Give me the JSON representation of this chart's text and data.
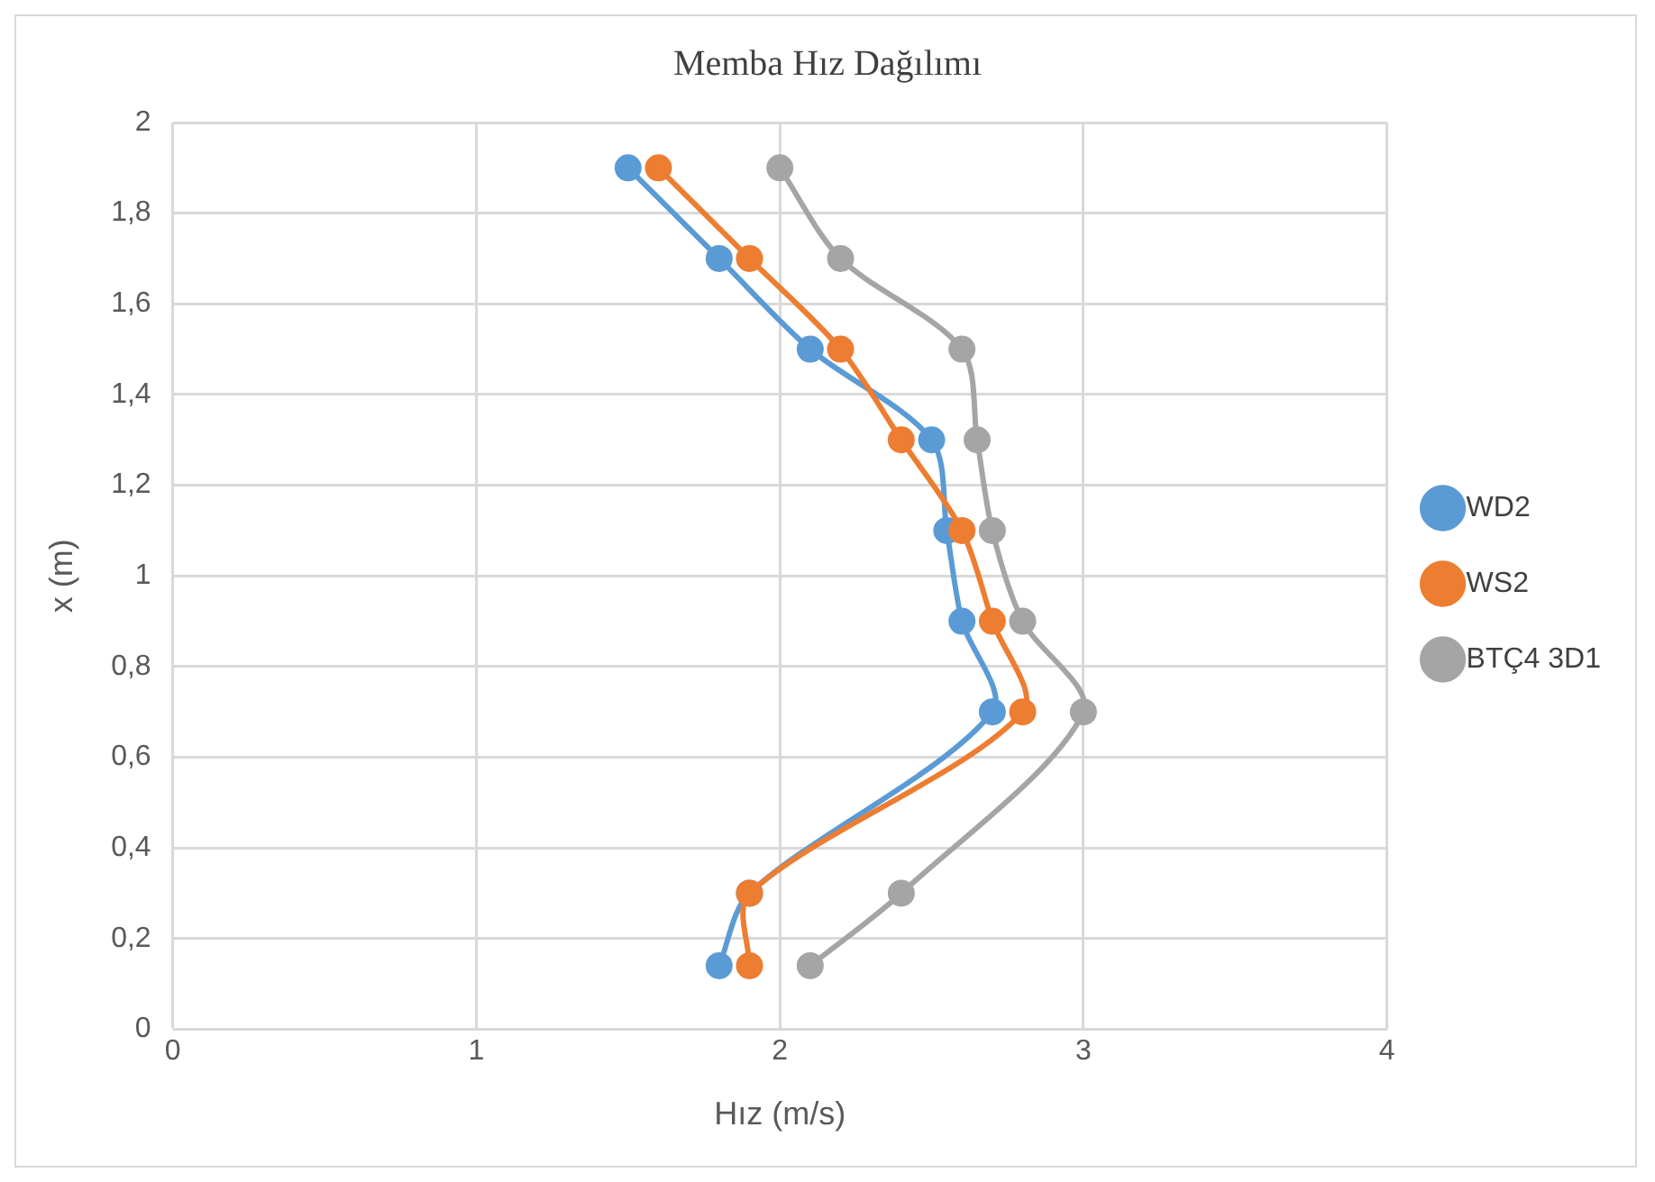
{
  "chart_data": {
    "type": "line",
    "title": "Memba Hız Dağılımı",
    "xlabel": "Hız (m/s)",
    "ylabel": "x (m)",
    "series": [
      {
        "name": "WD2",
        "color": "#5b9bd5",
        "x": [
          1.5,
          1.8,
          2.1,
          2.5,
          2.55,
          2.6,
          2.7,
          1.9,
          1.8
        ],
        "values": [
          1.9,
          1.7,
          1.5,
          1.3,
          1.1,
          0.9,
          0.7,
          0.3,
          0.14
        ]
      },
      {
        "name": "WS2",
        "color": "#ed7d31",
        "x": [
          1.6,
          1.9,
          2.2,
          2.4,
          2.6,
          2.7,
          2.8,
          1.9,
          1.9
        ],
        "values": [
          1.9,
          1.7,
          1.5,
          1.3,
          1.1,
          0.9,
          0.7,
          0.3,
          0.14
        ]
      },
      {
        "name": "BTÇ4 3D1",
        "color": "#a5a5a5",
        "x": [
          2.0,
          2.2,
          2.6,
          2.65,
          2.7,
          2.8,
          3.0,
          2.4,
          2.1
        ],
        "values": [
          1.9,
          1.7,
          1.5,
          1.3,
          1.1,
          0.9,
          0.7,
          0.3,
          0.14
        ]
      }
    ],
    "xlim": [
      0,
      4
    ],
    "xticks": [
      0,
      1,
      2,
      3,
      4
    ],
    "ylim": [
      0,
      2
    ],
    "yticks": [
      0,
      {
        "value": 0.2,
        "label": "0,2"
      },
      {
        "value": 0.4,
        "label": "0,4"
      },
      {
        "value": 0.6,
        "label": "0,6"
      },
      {
        "value": 0.8,
        "label": "0,8"
      },
      1,
      {
        "value": 1.2,
        "label": "1,2"
      },
      {
        "value": 1.4,
        "label": "1,4"
      },
      {
        "value": 1.6,
        "label": "1,6"
      },
      {
        "value": 1.8,
        "label": "1,8"
      },
      2
    ],
    "grid": true,
    "legend": "right",
    "marker": "circle",
    "line_style": "solid"
  }
}
